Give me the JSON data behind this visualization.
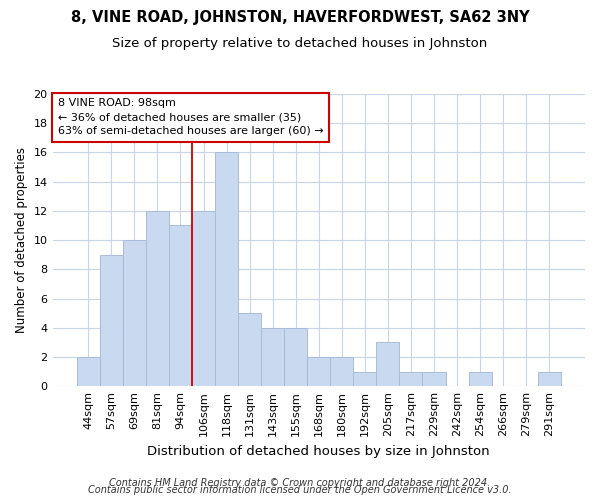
{
  "title1": "8, VINE ROAD, JOHNSTON, HAVERFORDWEST, SA62 3NY",
  "title2": "Size of property relative to detached houses in Johnston",
  "xlabel": "Distribution of detached houses by size in Johnston",
  "ylabel": "Number of detached properties",
  "footer_line1": "Contains HM Land Registry data © Crown copyright and database right 2024.",
  "footer_line2": "Contains public sector information licensed under the Open Government Licence v3.0.",
  "categories": [
    "44sqm",
    "57sqm",
    "69sqm",
    "81sqm",
    "94sqm",
    "106sqm",
    "118sqm",
    "131sqm",
    "143sqm",
    "155sqm",
    "168sqm",
    "180sqm",
    "192sqm",
    "205sqm",
    "217sqm",
    "229sqm",
    "242sqm",
    "254sqm",
    "266sqm",
    "279sqm",
    "291sqm"
  ],
  "values": [
    2,
    9,
    10,
    12,
    11,
    12,
    16,
    5,
    4,
    4,
    2,
    2,
    1,
    3,
    1,
    1,
    0,
    1,
    0,
    0,
    1
  ],
  "bar_color": "#c9d9f0",
  "bar_edge_color": "#aabdd8",
  "grid_color": "#c8d4e8",
  "annotation_line1": "8 VINE ROAD: 98sqm",
  "annotation_line2": "← 36% of detached houses are smaller (35)",
  "annotation_line3": "63% of semi-detached houses are larger (60) →",
  "annotation_box_facecolor": "#ffffff",
  "annotation_box_edgecolor": "#cc0000",
  "property_line_color": "#cc0000",
  "property_line_index": 4.5,
  "ylim": [
    0,
    20
  ],
  "yticks": [
    0,
    2,
    4,
    6,
    8,
    10,
    12,
    14,
    16,
    18,
    20
  ],
  "background_color": "#ffffff",
  "plot_bg_color": "#ffffff",
  "title1_fontsize": 10.5,
  "title2_fontsize": 9.5,
  "xlabel_fontsize": 9.5,
  "ylabel_fontsize": 8.5,
  "tick_fontsize": 8,
  "annotation_fontsize": 8,
  "footer_fontsize": 7
}
